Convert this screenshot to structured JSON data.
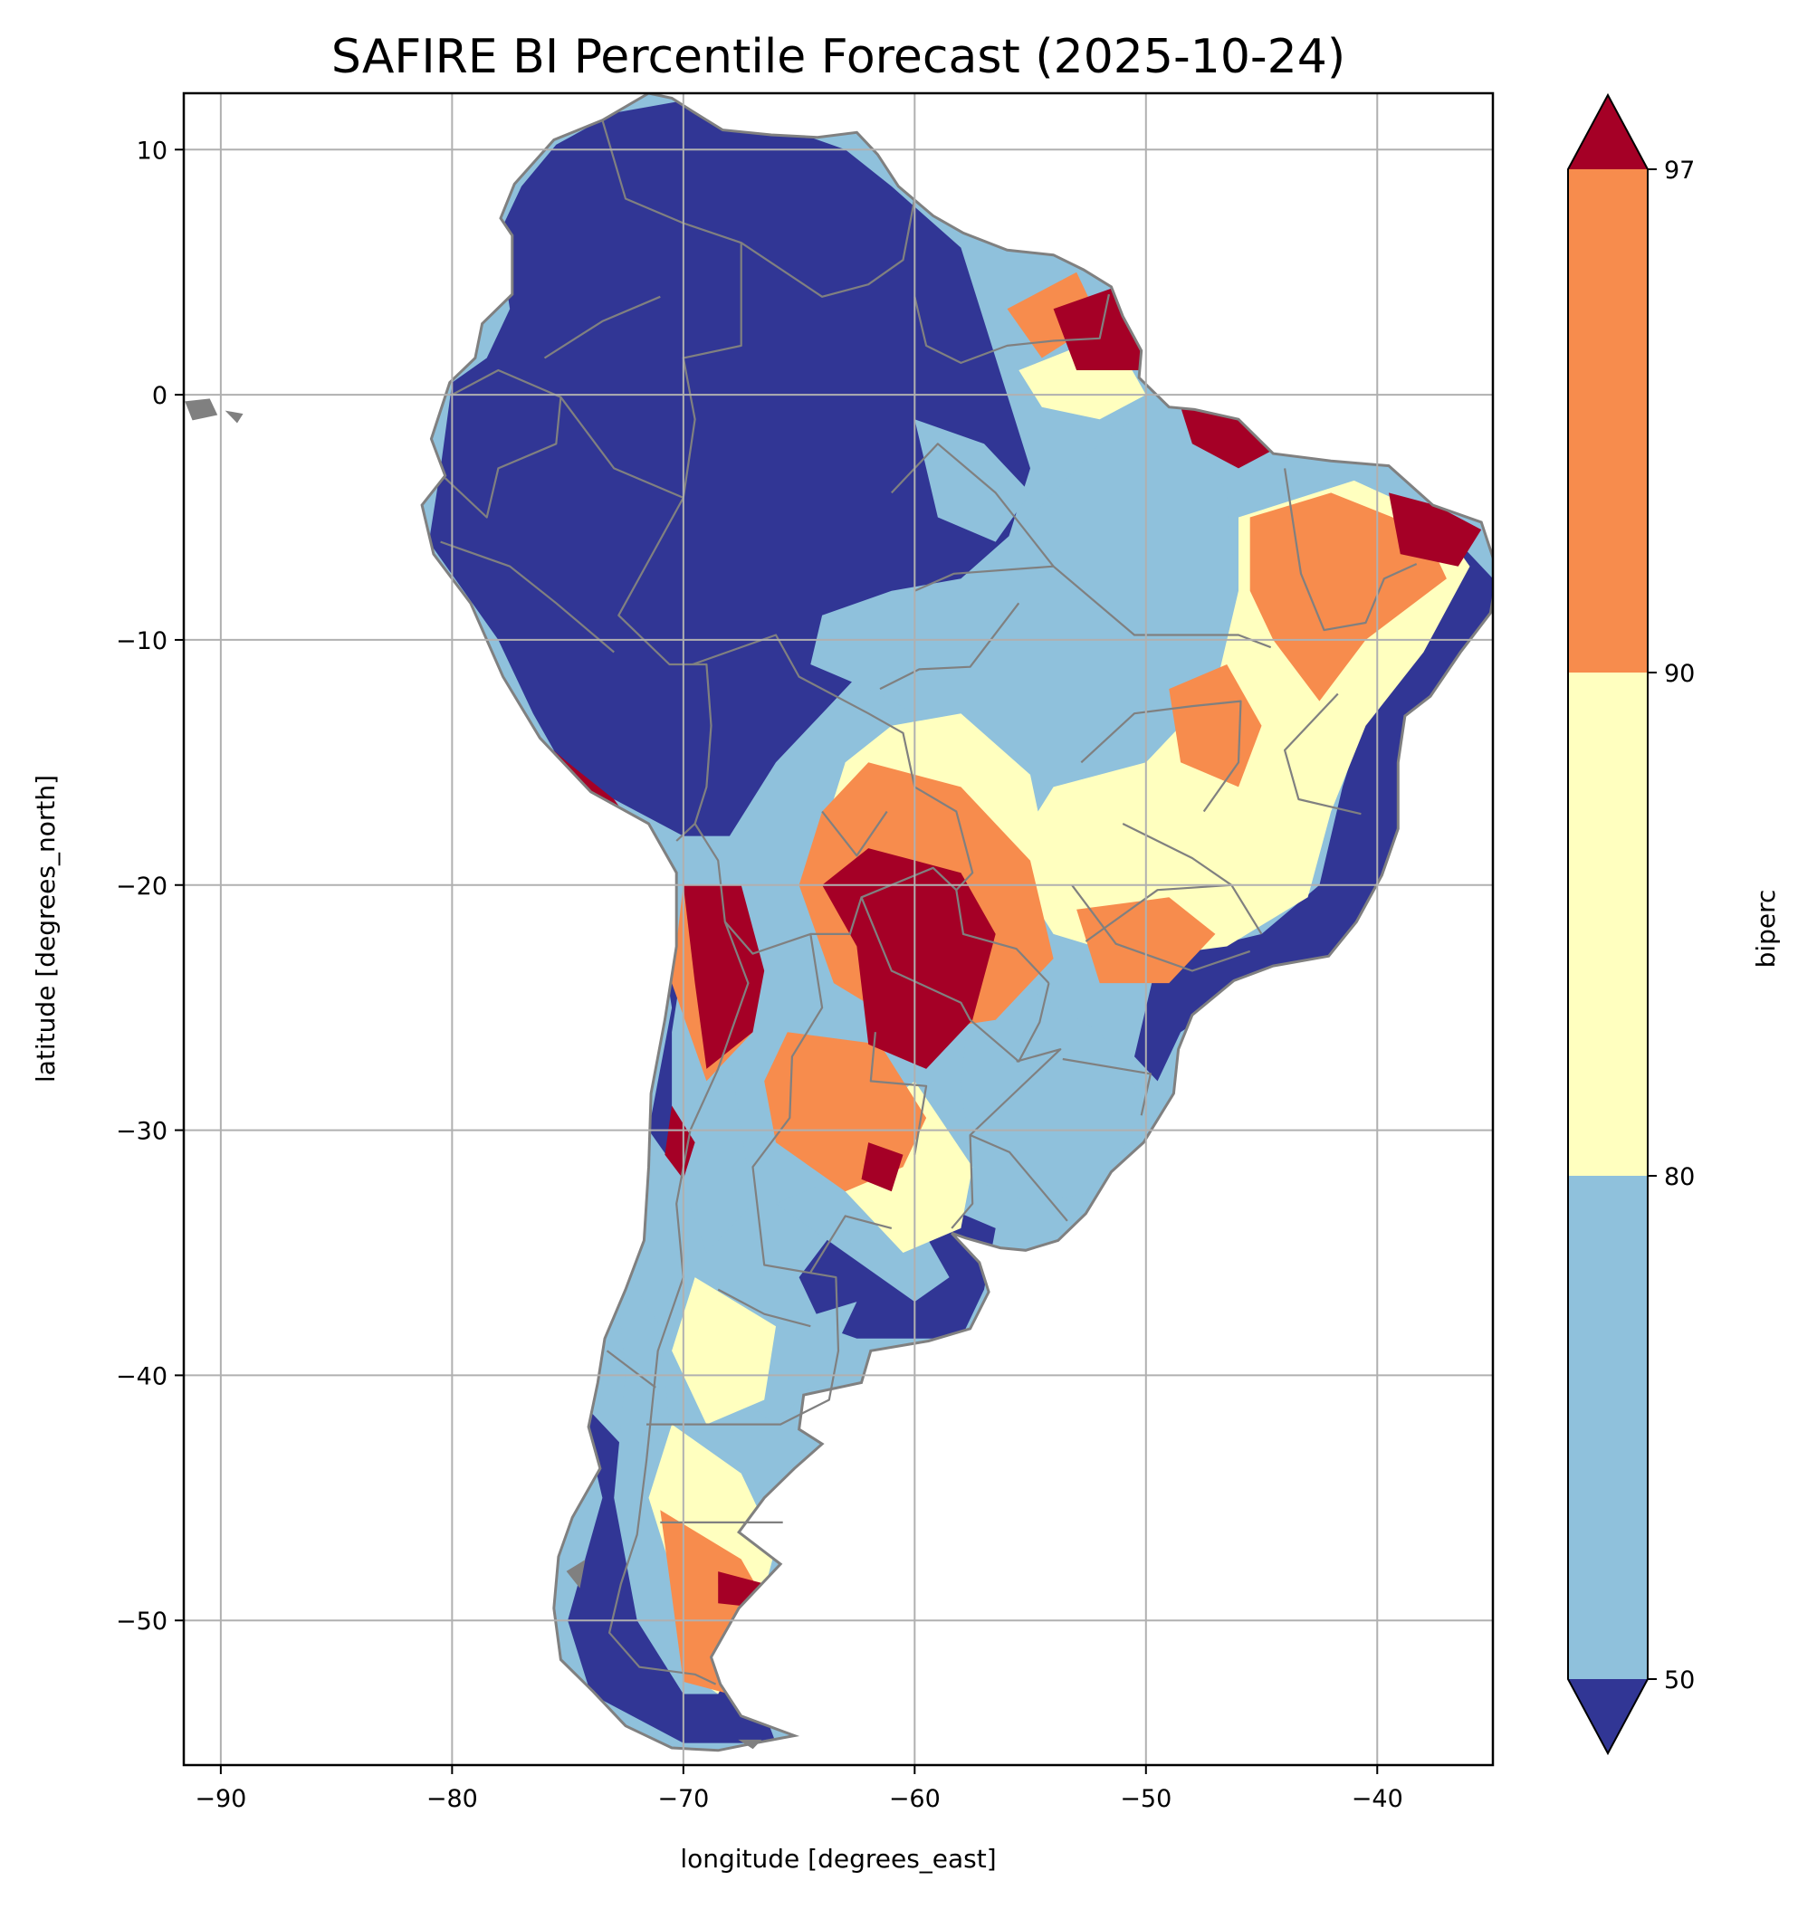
{
  "title": "SAFIRE BI Percentile Forecast (2025-10-24)",
  "xlabel": "longitude [degrees_east]",
  "ylabel": "latitude [degrees_north]",
  "colorbar": {
    "label": "biperc",
    "levels": [
      50,
      80,
      90,
      97
    ],
    "tick_labels": [
      "50",
      "80",
      "90",
      "97"
    ],
    "colors": {
      "under_50": "#313695",
      "50_80": "#8fc1dc",
      "80_90": "#ffffbf",
      "90_97": "#f78c4d",
      "over_97": "#a50026"
    }
  },
  "colors": {
    "borders": "#808080",
    "grid": "#b0b0b0",
    "water": "#ffffff"
  },
  "chart_data": {
    "type": "heatmap",
    "variable": "biperc",
    "xlim": [
      -91.6,
      -35.0
    ],
    "ylim": [
      -55.9,
      12.3
    ],
    "x_ticks": [
      -90,
      -80,
      -70,
      -60,
      -50,
      -40
    ],
    "x_tick_labels": [
      "−90",
      "−80",
      "−70",
      "−60",
      "−50",
      "−40"
    ],
    "y_ticks": [
      10,
      0,
      -10,
      -20,
      -30,
      -40,
      -50
    ],
    "y_tick_labels": [
      "10",
      "0",
      "−10",
      "−20",
      "−30",
      "−40",
      "−50"
    ],
    "grid": true,
    "colorbar_position": "right",
    "colorbar_extend": "both",
    "regions": [
      {
        "class": "under_50",
        "lonlat": [
          [
            -80.5,
            -3
          ],
          [
            -81,
            -6
          ],
          [
            -79.5,
            -8
          ],
          [
            -78,
            -10
          ],
          [
            -76.5,
            -13
          ],
          [
            -75,
            -15.5
          ],
          [
            -72,
            -17
          ],
          [
            -70,
            -18
          ],
          [
            -68,
            -18
          ],
          [
            -66,
            -15
          ],
          [
            -64,
            -13
          ],
          [
            -62,
            -11
          ],
          [
            -60,
            -9
          ],
          [
            -58,
            -8
          ],
          [
            -56,
            -6
          ],
          [
            -55,
            -3
          ],
          [
            -56,
            0
          ],
          [
            -57,
            3
          ],
          [
            -58,
            6
          ],
          [
            -61,
            8.5
          ],
          [
            -63,
            10
          ],
          [
            -66,
            11
          ],
          [
            -70,
            12
          ],
          [
            -73,
            11.5
          ],
          [
            -75.5,
            10.2
          ],
          [
            -77,
            8.5
          ],
          [
            -78,
            6.5
          ],
          [
            -77.5,
            3.5
          ],
          [
            -78.5,
            1.5
          ],
          [
            -80,
            0.5
          ]
        ]
      },
      {
        "class": "under_50",
        "lonlat": [
          [
            -36.5,
            -6
          ],
          [
            -35,
            -7.5
          ],
          [
            -35,
            -9
          ],
          [
            -37,
            -12
          ],
          [
            -38.5,
            -14
          ],
          [
            -39,
            -18
          ],
          [
            -40,
            -21
          ],
          [
            -41.5,
            -23
          ],
          [
            -44.5,
            -23.5
          ],
          [
            -48.5,
            -26
          ],
          [
            -49.5,
            -28
          ],
          [
            -50.5,
            -27
          ],
          [
            -49.5,
            -23
          ],
          [
            -45,
            -22
          ],
          [
            -42.5,
            -20
          ],
          [
            -41.5,
            -16
          ],
          [
            -40.5,
            -13
          ],
          [
            -39,
            -9
          ]
        ]
      },
      {
        "class": "under_50",
        "lonlat": [
          [
            -62.5,
            -38.5
          ],
          [
            -58,
            -38.5
          ],
          [
            -57,
            -36.5
          ],
          [
            -56.5,
            -34
          ],
          [
            -59,
            -33
          ],
          [
            -63,
            -33.5
          ],
          [
            -65,
            -36
          ],
          [
            -64,
            -38
          ]
        ]
      },
      {
        "class": "under_50",
        "lonlat": [
          [
            -74.5,
            -41
          ],
          [
            -73.5,
            -45
          ],
          [
            -75,
            -50
          ],
          [
            -74,
            -53
          ],
          [
            -70,
            -55
          ],
          [
            -66,
            -55
          ],
          [
            -67,
            -52.5
          ],
          [
            -70,
            -52
          ],
          [
            -72,
            -48
          ],
          [
            -72,
            -43.5
          ]
        ]
      },
      {
        "class": "under_50",
        "lonlat": [
          [
            -71,
            -22
          ],
          [
            -69,
            -28
          ],
          [
            -68.5,
            -31
          ],
          [
            -70,
            -32
          ],
          [
            -71.5,
            -30
          ],
          [
            -70.5,
            -25
          ]
        ]
      },
      {
        "class": "50_80",
        "lonlat": [
          [
            -61,
            -8
          ],
          [
            -58,
            -7.5
          ],
          [
            -55,
            -5
          ],
          [
            -52,
            -2
          ],
          [
            -49,
            0
          ],
          [
            -46.5,
            -4
          ],
          [
            -46,
            -9
          ],
          [
            -47,
            -13
          ],
          [
            -49,
            -16
          ],
          [
            -52.5,
            -17
          ],
          [
            -56,
            -15
          ],
          [
            -59,
            -13.5
          ],
          [
            -62,
            -12
          ],
          [
            -64.5,
            -11
          ],
          [
            -64,
            -9
          ]
        ]
      },
      {
        "class": "50_80",
        "lonlat": [
          [
            -58.5,
            -21
          ],
          [
            -55.5,
            -24
          ],
          [
            -52,
            -26
          ],
          [
            -50,
            -29
          ],
          [
            -52,
            -32.5
          ],
          [
            -55,
            -33
          ],
          [
            -57.5,
            -32
          ],
          [
            -58,
            -28
          ],
          [
            -57.5,
            -24
          ]
        ]
      },
      {
        "class": "50_80",
        "lonlat": [
          [
            -73,
            -35
          ],
          [
            -72.5,
            -40
          ],
          [
            -73,
            -45
          ],
          [
            -72,
            -50
          ],
          [
            -70,
            -53
          ],
          [
            -68.5,
            -53
          ],
          [
            -70,
            -48
          ],
          [
            -70.5,
            -43
          ],
          [
            -71,
            -38
          ]
        ]
      },
      {
        "class": "50_80",
        "lonlat": [
          [
            -70,
            -23
          ],
          [
            -68,
            -27
          ],
          [
            -67,
            -33
          ],
          [
            -69,
            -35
          ],
          [
            -70.5,
            -31
          ],
          [
            -70.5,
            -26
          ]
        ]
      },
      {
        "class": "50_80",
        "lonlat": [
          [
            -60,
            -1
          ],
          [
            -57,
            -2
          ],
          [
            -55,
            -4
          ],
          [
            -56.5,
            -6
          ],
          [
            -59,
            -5
          ]
        ]
      },
      {
        "class": "50_80",
        "lonlat": [
          [
            -66,
            -33
          ],
          [
            -63,
            -35
          ],
          [
            -60,
            -37
          ],
          [
            -58.5,
            -36
          ],
          [
            -60,
            -33.5
          ],
          [
            -63.5,
            -32
          ]
        ]
      },
      {
        "class": "50_80",
        "lonlat": [
          [
            -62.5,
            -37
          ],
          [
            -64,
            -40
          ],
          [
            -66,
            -42
          ],
          [
            -67.5,
            -41
          ],
          [
            -66,
            -38
          ]
        ]
      },
      {
        "class": "80_90",
        "lonlat": [
          [
            -46,
            -5
          ],
          [
            -41,
            -3.5
          ],
          [
            -37.5,
            -5
          ],
          [
            -36,
            -7
          ],
          [
            -38,
            -10.5
          ],
          [
            -40.5,
            -13.5
          ],
          [
            -42,
            -17
          ],
          [
            -43,
            -20.5
          ],
          [
            -46.5,
            -22.5
          ],
          [
            -50.5,
            -23
          ],
          [
            -54,
            -22
          ],
          [
            -56,
            -19
          ],
          [
            -54,
            -16
          ],
          [
            -50,
            -15
          ],
          [
            -47,
            -12
          ],
          [
            -46,
            -8
          ]
        ]
      },
      {
        "class": "80_90",
        "lonlat": [
          [
            -61,
            -13.5
          ],
          [
            -58,
            -13
          ],
          [
            -55,
            -15.5
          ],
          [
            -54,
            -20
          ],
          [
            -55.5,
            -24
          ],
          [
            -59,
            -25
          ],
          [
            -62.5,
            -22
          ],
          [
            -64,
            -18
          ],
          [
            -63,
            -15
          ]
        ]
      },
      {
        "class": "80_90",
        "lonlat": [
          [
            -70.5,
            -42
          ],
          [
            -67.5,
            -44
          ],
          [
            -66,
            -47
          ],
          [
            -67,
            -50.5
          ],
          [
            -68.5,
            -53
          ],
          [
            -70,
            -52
          ],
          [
            -70.5,
            -48
          ],
          [
            -71.5,
            -45
          ]
        ]
      },
      {
        "class": "80_90",
        "lonlat": [
          [
            -60,
            -28
          ],
          [
            -57.5,
            -31.5
          ],
          [
            -58,
            -34
          ],
          [
            -60.5,
            -35
          ],
          [
            -63,
            -32.5
          ],
          [
            -62,
            -29.5
          ]
        ]
      },
      {
        "class": "80_90",
        "lonlat": [
          [
            -69.5,
            -36
          ],
          [
            -66,
            -38
          ],
          [
            -66.5,
            -41
          ],
          [
            -69,
            -42
          ],
          [
            -70.5,
            -39
          ]
        ]
      },
      {
        "class": "80_90",
        "lonlat": [
          [
            -55.5,
            1
          ],
          [
            -51.5,
            2.5
          ],
          [
            -50,
            0
          ],
          [
            -52,
            -1
          ],
          [
            -54.5,
            -0.5
          ]
        ]
      },
      {
        "class": "90_97",
        "lonlat": [
          [
            -62,
            -15
          ],
          [
            -58,
            -16
          ],
          [
            -55,
            -19
          ],
          [
            -54,
            -23
          ],
          [
            -56.5,
            -25.5
          ],
          [
            -60,
            -26
          ],
          [
            -63.5,
            -24
          ],
          [
            -65,
            -20
          ],
          [
            -64,
            -17
          ]
        ]
      },
      {
        "class": "90_97",
        "lonlat": [
          [
            -65.5,
            -26
          ],
          [
            -61.5,
            -26.5
          ],
          [
            -59.5,
            -29.5
          ],
          [
            -60.5,
            -31.5
          ],
          [
            -63,
            -32.5
          ],
          [
            -66,
            -30.5
          ],
          [
            -66.5,
            -28
          ]
        ]
      },
      {
        "class": "90_97",
        "lonlat": [
          [
            -45.5,
            -5
          ],
          [
            -42,
            -4
          ],
          [
            -38,
            -5.5
          ],
          [
            -37,
            -7.5
          ],
          [
            -40.5,
            -10
          ],
          [
            -42.5,
            -12.5
          ],
          [
            -44.5,
            -10
          ],
          [
            -45.5,
            -8
          ]
        ]
      },
      {
        "class": "90_97",
        "lonlat": [
          [
            -49,
            -12
          ],
          [
            -46.5,
            -11
          ],
          [
            -45,
            -13.5
          ],
          [
            -46,
            -16
          ],
          [
            -48.5,
            -15
          ]
        ]
      },
      {
        "class": "90_97",
        "lonlat": [
          [
            -53,
            -21
          ],
          [
            -49,
            -20.5
          ],
          [
            -47,
            -22
          ],
          [
            -49,
            -24
          ],
          [
            -52,
            -24
          ]
        ]
      },
      {
        "class": "90_97",
        "lonlat": [
          [
            -71,
            -45.5
          ],
          [
            -67.5,
            -47.5
          ],
          [
            -66,
            -50
          ],
          [
            -68,
            -53
          ],
          [
            -70,
            -52.5
          ],
          [
            -70.5,
            -49
          ]
        ]
      },
      {
        "class": "90_97",
        "lonlat": [
          [
            -56,
            3.5
          ],
          [
            -53,
            5
          ],
          [
            -52,
            3
          ],
          [
            -54.5,
            1.5
          ]
        ]
      },
      {
        "class": "90_97",
        "lonlat": [
          [
            -70,
            -20
          ],
          [
            -67.5,
            -22
          ],
          [
            -67,
            -26
          ],
          [
            -69,
            -28
          ],
          [
            -70.5,
            -24
          ]
        ]
      },
      {
        "class": "over_97",
        "lonlat": [
          [
            -62,
            -18.5
          ],
          [
            -58,
            -19.5
          ],
          [
            -56.5,
            -22
          ],
          [
            -57.5,
            -25.5
          ],
          [
            -59.5,
            -27.5
          ],
          [
            -62,
            -26.5
          ],
          [
            -62.5,
            -22.5
          ],
          [
            -64,
            -20
          ]
        ]
      },
      {
        "class": "over_97",
        "lonlat": [
          [
            -70,
            -20
          ],
          [
            -67.5,
            -20
          ],
          [
            -66.5,
            -23.5
          ],
          [
            -67,
            -26
          ],
          [
            -69,
            -27.5
          ],
          [
            -69.5,
            -24
          ]
        ]
      },
      {
        "class": "over_97",
        "lonlat": [
          [
            -54,
            3.5
          ],
          [
            -51,
            4.5
          ],
          [
            -49.5,
            3
          ],
          [
            -50,
            1
          ],
          [
            -53,
            1
          ]
        ]
      },
      {
        "class": "over_97",
        "lonlat": [
          [
            -48.5,
            -0.5
          ],
          [
            -45,
            -1
          ],
          [
            -44,
            -2
          ],
          [
            -46,
            -3
          ],
          [
            -48,
            -2
          ]
        ]
      },
      {
        "class": "over_97",
        "lonlat": [
          [
            -39.5,
            -4
          ],
          [
            -37.5,
            -4.5
          ],
          [
            -35.5,
            -5.5
          ],
          [
            -36.5,
            -7
          ],
          [
            -39,
            -6.5
          ]
        ]
      },
      {
        "class": "over_97",
        "lonlat": [
          [
            -77.5,
            -13
          ],
          [
            -75,
            -15
          ],
          [
            -73,
            -16.5
          ],
          [
            -72,
            -17.8
          ],
          [
            -74.5,
            -16.5
          ],
          [
            -76.5,
            -14.5
          ]
        ]
      },
      {
        "class": "over_97",
        "lonlat": [
          [
            -68.5,
            -48
          ],
          [
            -66.5,
            -48.5
          ],
          [
            -66.5,
            -49.5
          ],
          [
            -68.5,
            -49.3
          ]
        ]
      },
      {
        "class": "over_97",
        "lonlat": [
          [
            -70.5,
            -29
          ],
          [
            -69.5,
            -30.5
          ],
          [
            -70,
            -32
          ],
          [
            -70.8,
            -31
          ]
        ]
      },
      {
        "class": "over_97",
        "lonlat": [
          [
            -62,
            -30.5
          ],
          [
            -60.5,
            -31
          ],
          [
            -61,
            -32.5
          ],
          [
            -62.3,
            -32
          ]
        ]
      }
    ]
  }
}
